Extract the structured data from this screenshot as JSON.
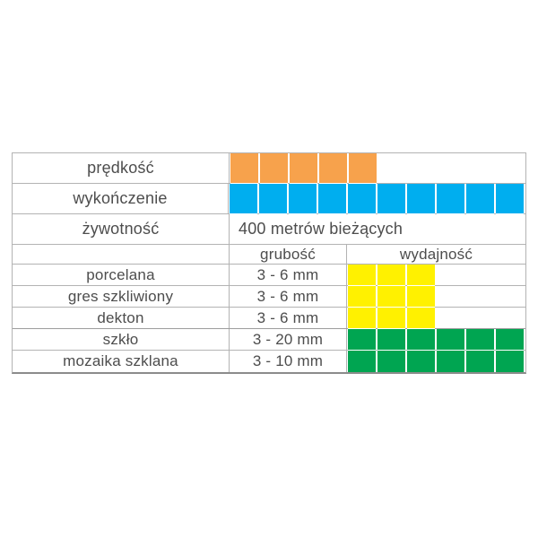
{
  "colors": {
    "orange": "#F7A24C",
    "blue": "#00AEEF",
    "yellow": "#FFF100",
    "green": "#00A551",
    "grid": "#b3b3b3",
    "bottom_border": "#8c8c8c",
    "text": "#4d4d4d",
    "background": "#ffffff"
  },
  "chart_data": {
    "type": "table",
    "language": "Polish",
    "rating_rows": [
      {
        "label": "prędkość",
        "squares": 5,
        "color": "orange"
      },
      {
        "label": "wykończenie",
        "squares": 10,
        "color": "blue"
      }
    ],
    "text_row": {
      "label": "żywotność",
      "value": "400 metrów bieżących"
    },
    "header_row": {
      "col2": "grubość",
      "col3": "wydajność"
    },
    "material_rows": [
      {
        "label": "porcelana",
        "thickness": "3 - 6 mm",
        "squares": 3,
        "color": "yellow"
      },
      {
        "label": "gres szkliwiony",
        "thickness": "3 - 6 mm",
        "squares": 3,
        "color": "yellow"
      },
      {
        "label": "dekton",
        "thickness": "3 - 6 mm",
        "squares": 3,
        "color": "yellow"
      },
      {
        "label": "szkło",
        "thickness": "3 - 20 mm",
        "squares": 6,
        "color": "green"
      },
      {
        "label": "mozaika szklana",
        "thickness": "3 - 10 mm",
        "squares": 6,
        "color": "green"
      }
    ]
  }
}
